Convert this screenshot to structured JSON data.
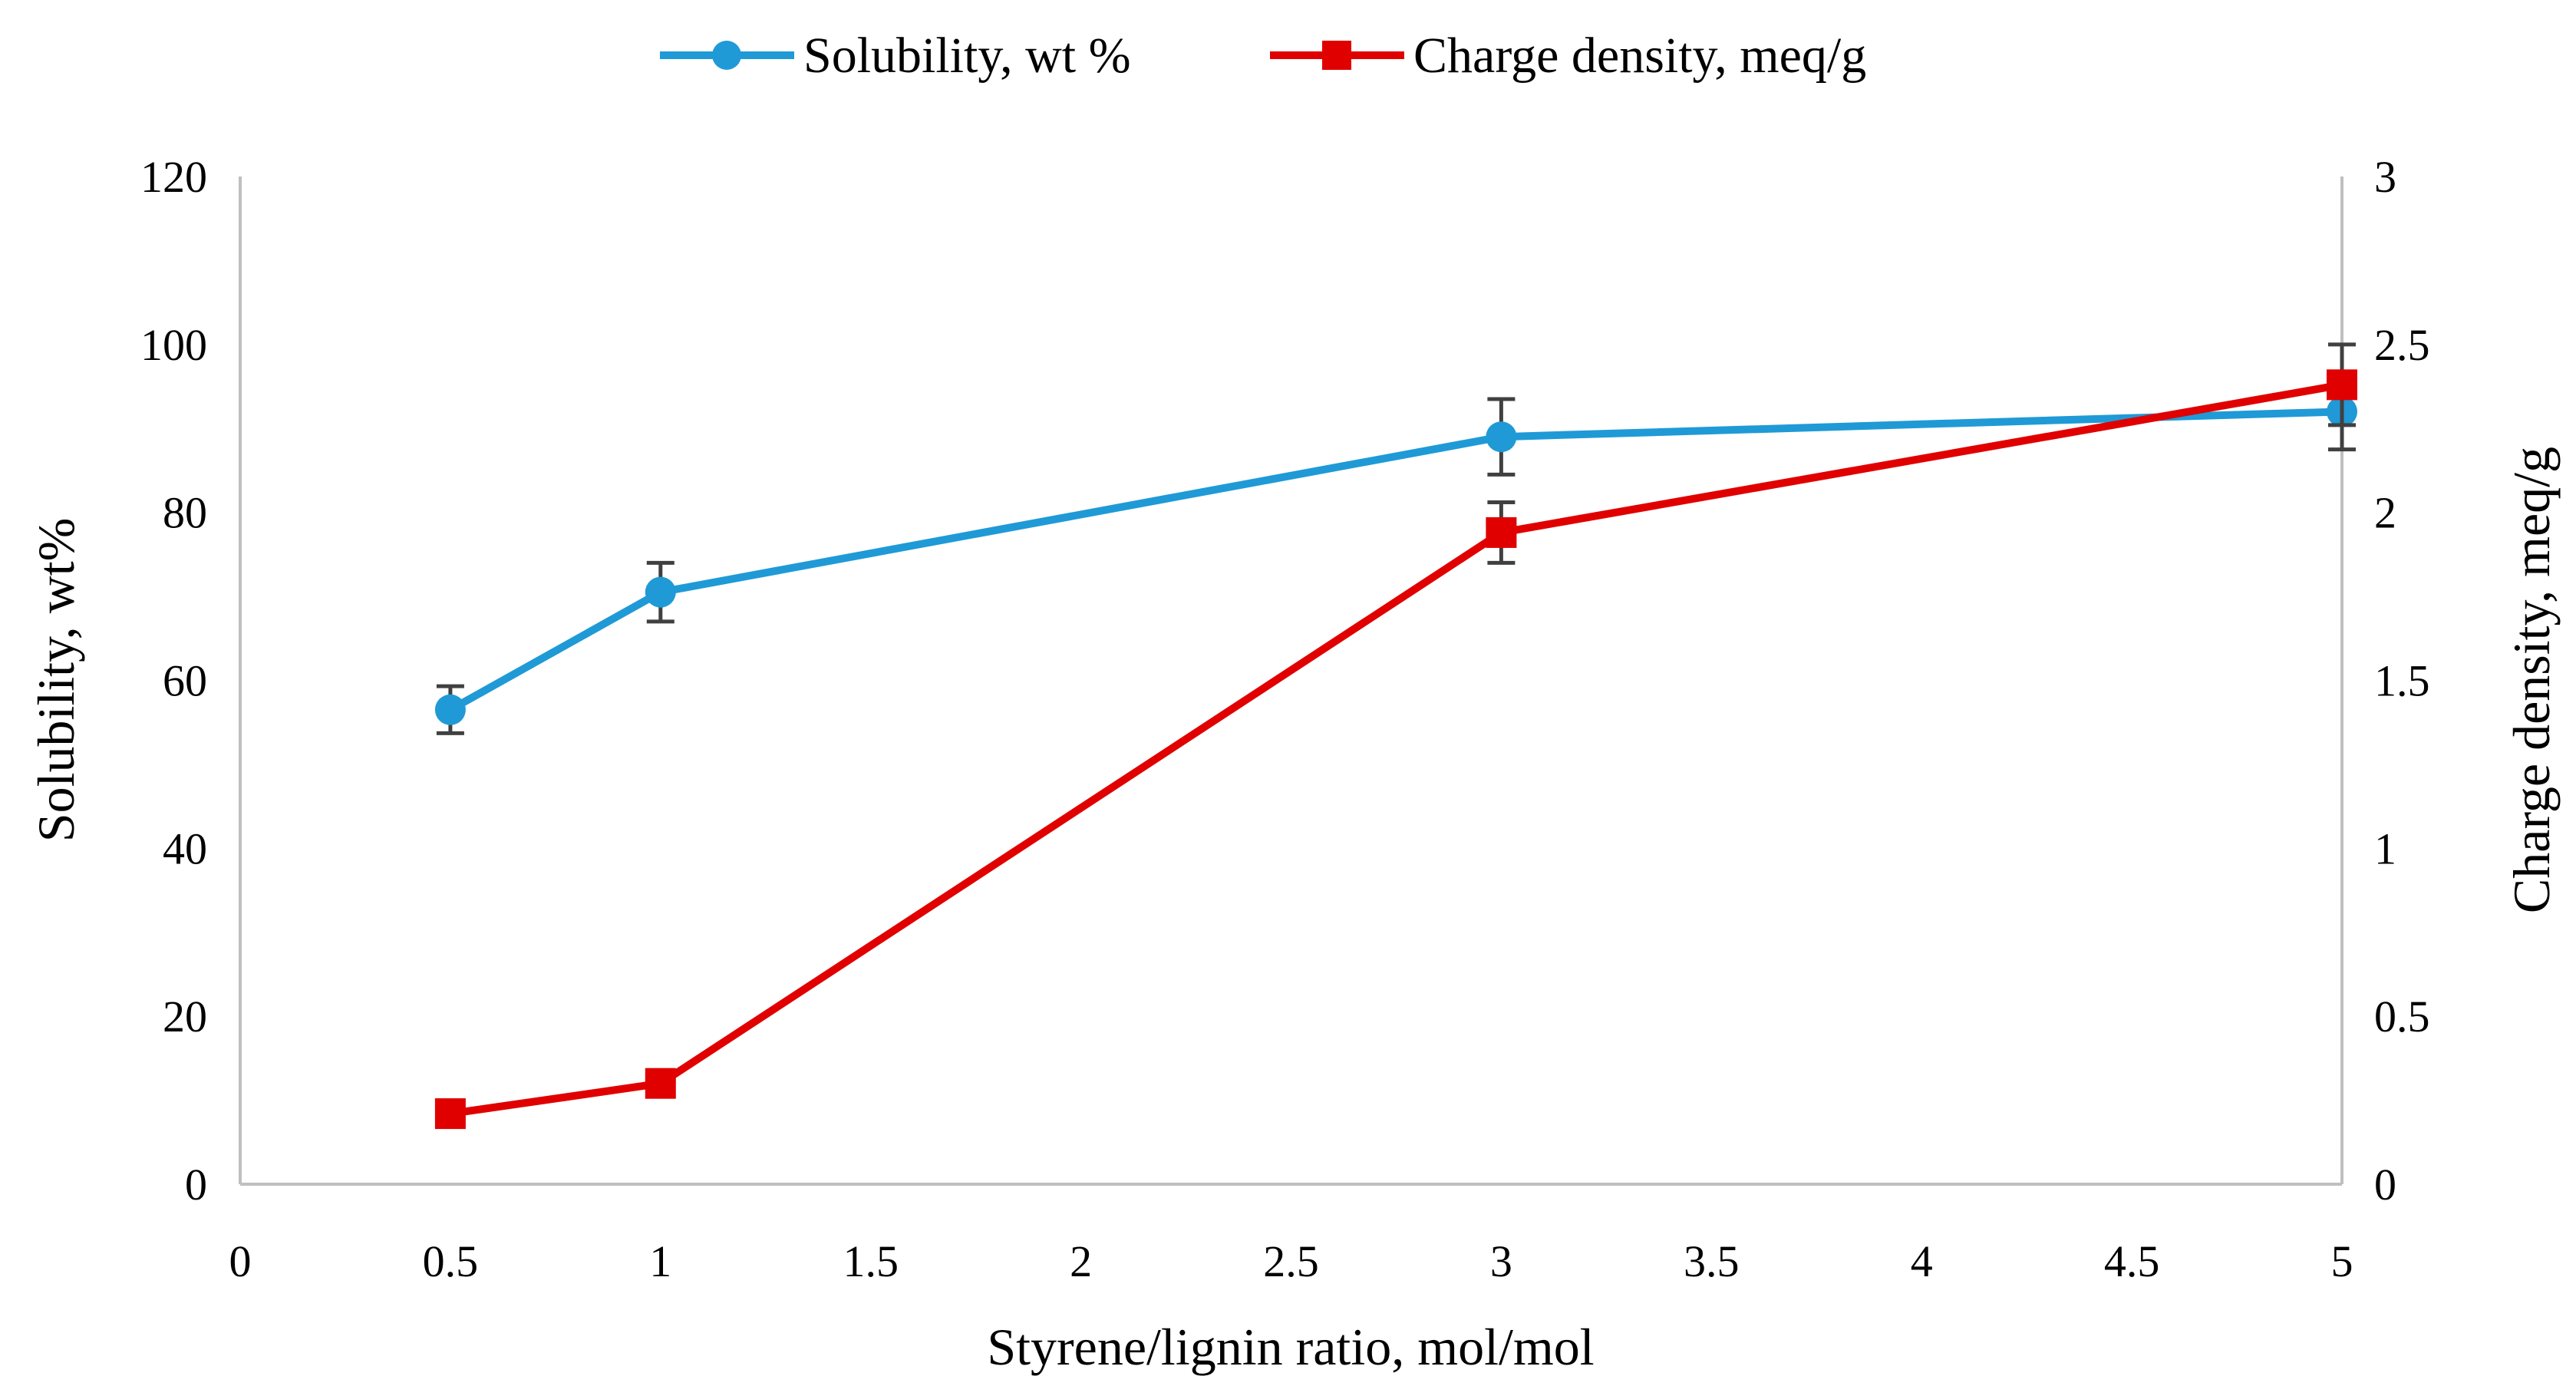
{
  "colors": {
    "solubility": "#1f9ad6",
    "charge": "#e00000",
    "axis": "#bfbfbf",
    "errorbar": "#404040"
  },
  "legend": {
    "items": [
      {
        "label": "Solubility, wt %",
        "series": "solubility",
        "marker": "circle"
      },
      {
        "label": "Charge density, meq/g",
        "series": "charge",
        "marker": "square"
      }
    ]
  },
  "chart_data": {
    "type": "line",
    "xlabel": "Styrene/lignin ratio, mol/mol",
    "ylabel_left": "Solubility, wt%",
    "ylabel_right": "Charge density, meq/g",
    "xlim": [
      0,
      5
    ],
    "ylim_left": [
      0,
      120
    ],
    "ylim_right": [
      0,
      3
    ],
    "x_ticks": [
      "0",
      "0.5",
      "1",
      "1.5",
      "2",
      "2.5",
      "3",
      "3.5",
      "4",
      "4.5",
      "5"
    ],
    "y_left_ticks": [
      "0",
      "20",
      "40",
      "60",
      "80",
      "100",
      "120"
    ],
    "y_right_ticks": [
      "0",
      "0.5",
      "1",
      "1.5",
      "2",
      "2.5",
      "3"
    ],
    "grid": false,
    "legend_position": "top",
    "series": [
      {
        "name": "Solubility, wt %",
        "axis": "left",
        "marker": "circle",
        "x": [
          0.5,
          1,
          3,
          5
        ],
        "y": [
          56.5,
          70.5,
          89,
          92
        ],
        "error": [
          2.8,
          3.5,
          4.5,
          4.5
        ]
      },
      {
        "name": "Charge density, meq/g",
        "axis": "right",
        "marker": "square",
        "x": [
          0.5,
          1,
          3,
          5
        ],
        "y": [
          0.21,
          0.3,
          1.94,
          2.38
        ],
        "error": [
          0,
          0,
          0.09,
          0.12
        ]
      }
    ]
  }
}
